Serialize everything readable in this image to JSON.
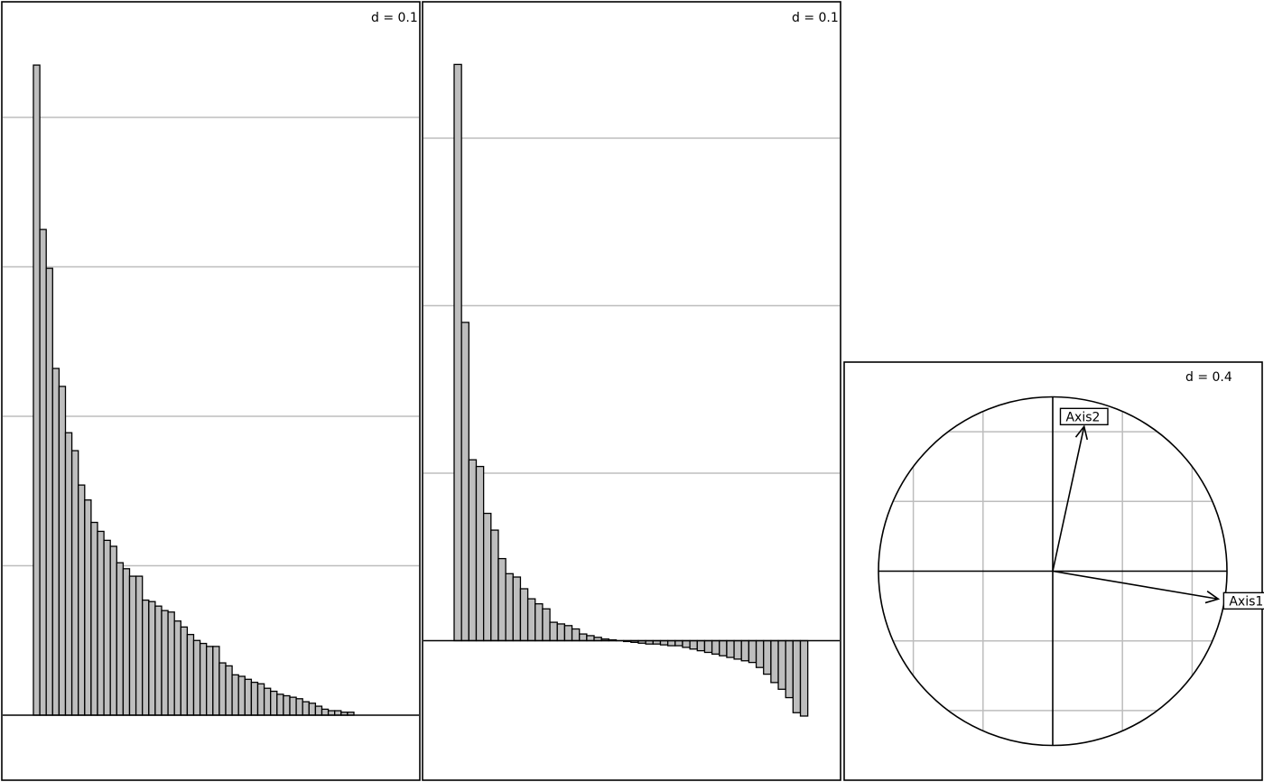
{
  "chart_data": [
    {
      "type": "bar",
      "d_label": "d = 0.1",
      "ylim": [
        0,
        0.43
      ],
      "grid_step": 0.1,
      "values": [
        0.435,
        0.325,
        0.299,
        0.232,
        0.22,
        0.189,
        0.177,
        0.154,
        0.144,
        0.129,
        0.123,
        0.117,
        0.113,
        0.102,
        0.098,
        0.093,
        0.093,
        0.077,
        0.076,
        0.073,
        0.07,
        0.069,
        0.063,
        0.059,
        0.054,
        0.05,
        0.048,
        0.046,
        0.046,
        0.035,
        0.033,
        0.027,
        0.026,
        0.024,
        0.022,
        0.021,
        0.018,
        0.016,
        0.014,
        0.013,
        0.012,
        0.011,
        0.009,
        0.008,
        0.006,
        0.004,
        0.003,
        0.003,
        0.002,
        0.002
      ]
    },
    {
      "type": "bar",
      "d_label": "d = 0.1",
      "ylim": [
        -0.05,
        0.35
      ],
      "grid_step": 0.1,
      "values": [
        0.344,
        0.19,
        0.108,
        0.104,
        0.076,
        0.066,
        0.049,
        0.04,
        0.038,
        0.031,
        0.025,
        0.022,
        0.019,
        0.011,
        0.01,
        0.009,
        0.007,
        0.004,
        0.003,
        0.002,
        0.001,
        0.0005,
        0.0,
        -0.0005,
        -0.001,
        -0.0015,
        -0.002,
        -0.002,
        -0.0025,
        -0.003,
        -0.003,
        -0.004,
        -0.005,
        -0.006,
        -0.007,
        -0.008,
        -0.009,
        -0.01,
        -0.011,
        -0.012,
        -0.013,
        -0.016,
        -0.02,
        -0.025,
        -0.029,
        -0.034,
        -0.043,
        -0.045
      ]
    },
    {
      "type": "correlation-circle",
      "d_label": "d = 0.4",
      "radius": 1,
      "grid_step": 0.4,
      "vectors": [
        {
          "label": "Axis1",
          "x": 0.95,
          "y": -0.16
        },
        {
          "label": "Axis2",
          "x": 0.18,
          "y": 0.83
        }
      ]
    }
  ]
}
